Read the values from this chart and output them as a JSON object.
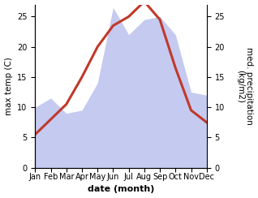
{
  "months": [
    "Jan",
    "Feb",
    "Mar",
    "Apr",
    "May",
    "Jun",
    "Jul",
    "Aug",
    "Sep",
    "Oct",
    "Nov",
    "Dec"
  ],
  "temperature": [
    5.5,
    8.0,
    10.5,
    15.0,
    20.0,
    23.5,
    25.0,
    27.5,
    24.5,
    16.5,
    9.5,
    7.5
  ],
  "precipitation": [
    10.0,
    11.5,
    9.0,
    9.5,
    14.0,
    26.5,
    22.0,
    24.5,
    25.0,
    22.0,
    12.5,
    12.0
  ],
  "temp_color": "#c0392b",
  "precip_color": "#c5caf0",
  "ylabel_left": "max temp (C)",
  "ylabel_right": "med. precipitation\n(kg/m2)",
  "xlabel": "date (month)",
  "ylim": [
    0,
    27
  ],
  "yticks": [
    0,
    5,
    10,
    15,
    20,
    25
  ],
  "right_yticks": [
    0,
    5,
    10,
    15,
    20,
    25
  ],
  "background_color": "#ffffff",
  "temp_linewidth": 2.2,
  "xlabel_fontsize": 8,
  "ylabel_fontsize": 7.5,
  "tick_fontsize": 7
}
